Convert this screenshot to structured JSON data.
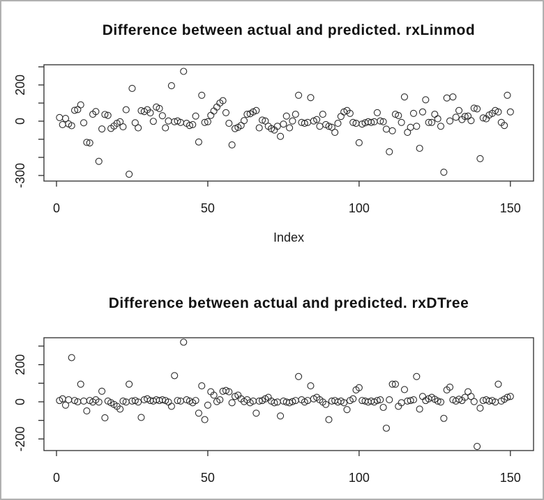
{
  "device": {
    "background": "#ffffff",
    "border_color": "#b0b0b0",
    "point_color": "#2b2b2b",
    "axis_color": "#2b2b2b",
    "text_color": "#111111"
  },
  "chart_data": [
    {
      "type": "scatter",
      "title": "Difference between actual and predicted. rxLinmod",
      "xlabel": "Index",
      "ylabel": "",
      "marker": "open-circle",
      "grid": false,
      "legend": "none",
      "x_start": 1,
      "xlim": [
        -4.15,
        157.65
      ],
      "ylim": [
        -330.8,
        311.5
      ],
      "xticks": [
        0,
        50,
        100,
        150
      ],
      "xtick_labels": [
        "0",
        "50",
        "100",
        "150"
      ],
      "yticks": [
        300,
        200,
        100,
        0,
        -100,
        -200,
        -300
      ],
      "ytick_labels": [
        "",
        "200",
        "",
        "0",
        "",
        "",
        "-300"
      ],
      "values": [
        20,
        -19,
        15,
        -15,
        -25,
        60,
        64,
        90,
        -9,
        -117,
        -120,
        38,
        53,
        -222,
        -43,
        37,
        32,
        -40,
        -27,
        -12,
        -3,
        -31,
        63,
        -293,
        181,
        -9,
        -37,
        58,
        53,
        63,
        46,
        -1,
        78,
        70,
        30,
        -37,
        1,
        196,
        -3,
        1,
        -7,
        275,
        -12,
        -24,
        -19,
        28,
        -115,
        143,
        -7,
        -3,
        32,
        56,
        78,
        100,
        113,
        47,
        -12,
        -131,
        -41,
        -34,
        -24,
        3,
        38,
        41,
        51,
        59,
        -37,
        6,
        1,
        -28,
        -41,
        -49,
        -28,
        -84,
        -16,
        28,
        -37,
        1,
        38,
        143,
        -7,
        -12,
        -7,
        130,
        1,
        9,
        -28,
        38,
        -19,
        -28,
        -34,
        -62,
        -12,
        26,
        51,
        59,
        43,
        -7,
        -12,
        -119,
        -16,
        -9,
        -3,
        -7,
        -3,
        47,
        1,
        -3,
        -44,
        -169,
        -53,
        38,
        31,
        -7,
        134,
        -62,
        -34,
        43,
        -28,
        -150,
        51,
        118,
        -7,
        -7,
        38,
        13,
        -28,
        -282,
        128,
        1,
        134,
        22,
        59,
        9,
        26,
        28,
        3,
        72,
        68,
        -207,
        18,
        13,
        34,
        43,
        59,
        51,
        -7,
        -24,
        143,
        51
      ]
    },
    {
      "type": "scatter",
      "title": "Difference between actual and predicted. rxDTree",
      "xlabel": "",
      "ylabel": "",
      "marker": "open-circle",
      "grid": false,
      "legend": "none",
      "x_start": 1,
      "xlim": [
        -4.15,
        157.65
      ],
      "ylim": [
        -262.4,
        344.9
      ],
      "xticks": [
        0,
        50,
        100,
        150
      ],
      "xtick_labels": [
        "0",
        "50",
        "100",
        "150"
      ],
      "yticks": [
        300,
        200,
        100,
        0,
        -100,
        -200
      ],
      "ytick_labels": [
        "",
        "200",
        "",
        "0",
        "",
        "-200"
      ],
      "values": [
        7,
        16,
        -18,
        11,
        238,
        7,
        0,
        95,
        4,
        -49,
        7,
        -1,
        11,
        -1,
        57,
        -86,
        4,
        -5,
        -14,
        -24,
        -39,
        4,
        -1,
        95,
        4,
        7,
        -1,
        -84,
        11,
        16,
        7,
        4,
        11,
        7,
        11,
        7,
        -1,
        -24,
        141,
        7,
        4,
        321,
        11,
        4,
        -5,
        7,
        -61,
        86,
        -96,
        -18,
        54,
        36,
        1,
        11,
        57,
        61,
        54,
        -5,
        29,
        36,
        16,
        1,
        11,
        -5,
        4,
        -61,
        4,
        7,
        16,
        24,
        4,
        -5,
        -1,
        -76,
        4,
        -1,
        -5,
        1,
        7,
        136,
        11,
        -1,
        7,
        86,
        16,
        24,
        11,
        -1,
        -14,
        -96,
        4,
        7,
        -1,
        4,
        -5,
        -42,
        7,
        16,
        64,
        76,
        7,
        4,
        -1,
        4,
        -1,
        7,
        11,
        -30,
        -142,
        11,
        95,
        95,
        -24,
        -5,
        66,
        4,
        7,
        11,
        136,
        -39,
        29,
        7,
        16,
        24,
        14,
        4,
        -1,
        -89,
        64,
        79,
        11,
        4,
        14,
        7,
        24,
        54,
        29,
        1,
        -240,
        -34,
        7,
        11,
        4,
        7,
        -1,
        95,
        4,
        14,
        24,
        29
      ]
    }
  ]
}
